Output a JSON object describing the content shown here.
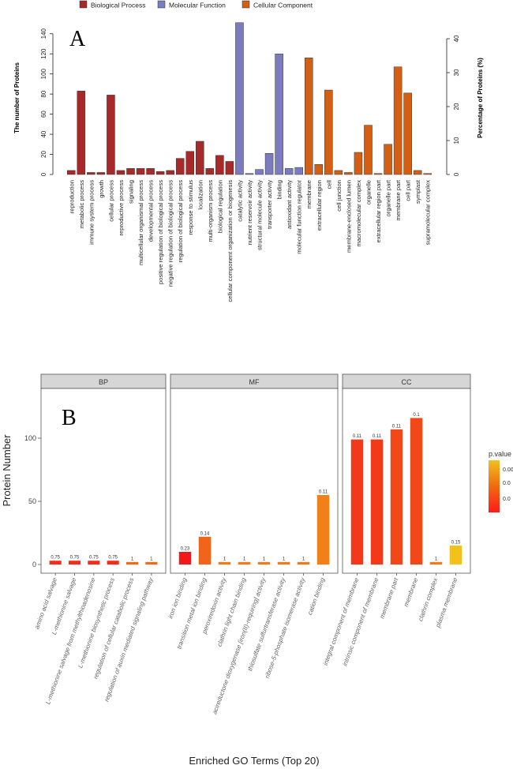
{
  "chart_data": [
    {
      "type": "bar",
      "panel_label": "A",
      "ylabel": "The number of Proteins",
      "y2label": "Percentage of Proteins (%)",
      "ylim": [
        0,
        150
      ],
      "yticks": [
        0,
        20,
        40,
        60,
        80,
        100,
        120,
        140
      ],
      "y2lim": [
        0,
        40
      ],
      "y2ticks": [
        0,
        10,
        20,
        30,
        40
      ],
      "legend_position": "top",
      "legend": [
        {
          "name": "Biological Process",
          "color": "#a52a2a"
        },
        {
          "name": "Molecular Function",
          "color": "#7b7bc0"
        },
        {
          "name": "Cellular Component",
          "color": "#d35f14"
        }
      ],
      "categories": [
        "reproduction",
        "metabolic process",
        "immune system process",
        "growth",
        "cellular process",
        "reproductive process",
        "signaling",
        "multicellular organismal process",
        "developmental process",
        "positive regulation of biological process",
        "negative regulation of biological process",
        "regulation of biological process",
        "response to stimulus",
        "localization",
        "multi-organism process",
        "biological regulation",
        "cellular component organization or biogenesis",
        "catalytic activity",
        "nutrient reservoir activity",
        "structural molecule activity",
        "transporter activity",
        "binding",
        "antioxidant activity",
        "molecular function regulator",
        "membrane",
        "extracellular region",
        "cell",
        "cell junction",
        "membrane-enclosed lumen",
        "macromolecular complex",
        "organelle",
        "extracellular region part",
        "organelle part",
        "membrane part",
        "cell part",
        "symplast",
        "supramolecular complex"
      ],
      "groups": [
        0,
        0,
        0,
        0,
        0,
        0,
        0,
        0,
        0,
        0,
        0,
        0,
        0,
        0,
        0,
        0,
        0,
        1,
        1,
        1,
        1,
        1,
        1,
        1,
        2,
        2,
        2,
        2,
        2,
        2,
        2,
        2,
        2,
        2,
        2,
        2,
        2
      ],
      "values": [
        4,
        83,
        2,
        2,
        79,
        4,
        6,
        6,
        6,
        3,
        4,
        16,
        23,
        33,
        6,
        19,
        13,
        151,
        1,
        5,
        21,
        120,
        6,
        7,
        116,
        10,
        84,
        4,
        2,
        22,
        49,
        1,
        30,
        107,
        81,
        4,
        1
      ]
    },
    {
      "type": "bar",
      "panel_label": "B",
      "ylabel": "Protein Number",
      "xlabel": "Enriched GO Terms (Top 20)",
      "ylim": [
        0,
        140
      ],
      "yticks": [
        0,
        50,
        100
      ],
      "legend_title": "p.value",
      "colorbar": {
        "low": "#ff1a1a",
        "mid": "#f06a10",
        "high": "#f0c020",
        "tick_labels": [
          "0.00",
          "0.0",
          "0.0"
        ]
      },
      "facets": [
        {
          "name": "BP",
          "categories": [
            "amino acid salvage",
            "L-methionine salvage",
            "L-methionine salvage from methylthioadenosine",
            "L-methionine biosynthetic process",
            "regulation of cellular catabolic process",
            "regulation of auxin mediated signaling pathway"
          ],
          "values": [
            3,
            3,
            3,
            3,
            2,
            2
          ],
          "labels": [
            "0.75",
            "0.75",
            "0.75",
            "0.75",
            "1",
            "1"
          ],
          "pvalues": [
            0.75,
            0.75,
            0.75,
            0.75,
            1,
            1
          ],
          "colors": [
            "#f42d18",
            "#f42d18",
            "#f42d18",
            "#f42d18",
            "#f26a14",
            "#f26a14"
          ]
        },
        {
          "name": "MF",
          "categories": [
            "iron ion binding",
            "transition metal ion binding",
            "peroxiredoxin activity",
            "clathrin light chain binding",
            "acireductone dioxygenase [iron(II)-requiring] activity",
            "thiosulfate sulfurtransferase activity",
            "ribose-5-phosphate isomerase activity",
            "cation binding"
          ],
          "values": [
            10,
            22,
            2,
            2,
            2,
            2,
            2,
            55
          ],
          "labels": [
            "0.23",
            "0.14",
            "1",
            "1",
            "1",
            "1",
            "1",
            "0.11"
          ],
          "pvalues": [
            0.23,
            0.14,
            1,
            1,
            1,
            1,
            1,
            0.11
          ],
          "colors": [
            "#f01818",
            "#f2641a",
            "#f27a18",
            "#f27a18",
            "#f27a18",
            "#f27a18",
            "#f27a18",
            "#f28018"
          ]
        },
        {
          "name": "CC",
          "categories": [
            "integral component of membrane",
            "intrinsic component of membrane",
            "membrane part",
            "membrane",
            "clathrin complex",
            "plasma membrane"
          ],
          "values": [
            99,
            99,
            107,
            116,
            2,
            15
          ],
          "labels": [
            "0.11",
            "0.11",
            "0.11",
            "0.1",
            "1",
            "0.15"
          ],
          "pvalues": [
            0.11,
            0.11,
            0.11,
            0.1,
            1,
            0.15
          ],
          "colors": [
            "#f23a1a",
            "#f23a1a",
            "#f24818",
            "#f24818",
            "#f27a18",
            "#f2c21a"
          ]
        }
      ]
    }
  ]
}
